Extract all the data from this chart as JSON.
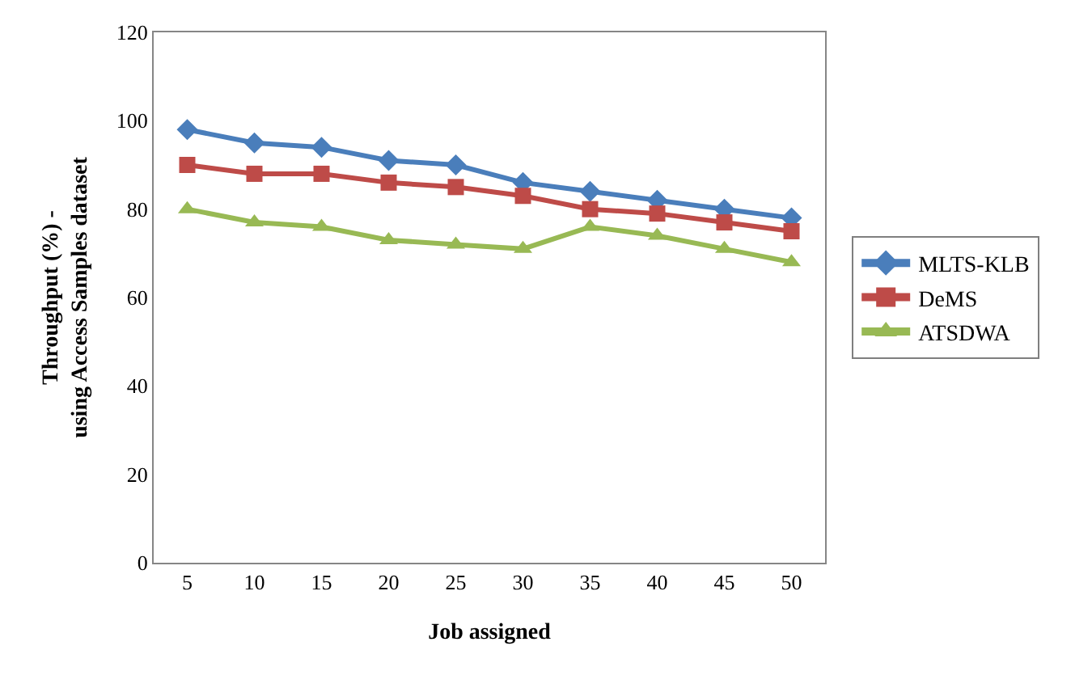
{
  "chart_data": {
    "type": "line",
    "xlabel": "Job assigned",
    "ylabel": "Throughput (%) - using Access Samples dataset",
    "categories": [
      "5",
      "10",
      "15",
      "20",
      "25",
      "30",
      "35",
      "40",
      "45",
      "50"
    ],
    "series": [
      {
        "name": "MLTS-KLB",
        "color": "#4a7ebb",
        "marker": "diamond",
        "values": [
          98,
          95,
          94,
          91,
          90,
          86,
          84,
          82,
          80,
          78
        ]
      },
      {
        "name": "DeMS",
        "color": "#be4b48",
        "marker": "square",
        "values": [
          90,
          88,
          88,
          86,
          85,
          83,
          80,
          79,
          77,
          75
        ]
      },
      {
        "name": "ATSDWA",
        "color": "#98b954",
        "marker": "triangle",
        "values": [
          80,
          77,
          76,
          73,
          72,
          71,
          76,
          74,
          71,
          68
        ]
      }
    ],
    "ylim": [
      0,
      120
    ],
    "yticks": [
      0,
      20,
      40,
      60,
      80,
      100,
      120
    ],
    "grid": false,
    "legend": "right",
    "line_style": "solid"
  }
}
